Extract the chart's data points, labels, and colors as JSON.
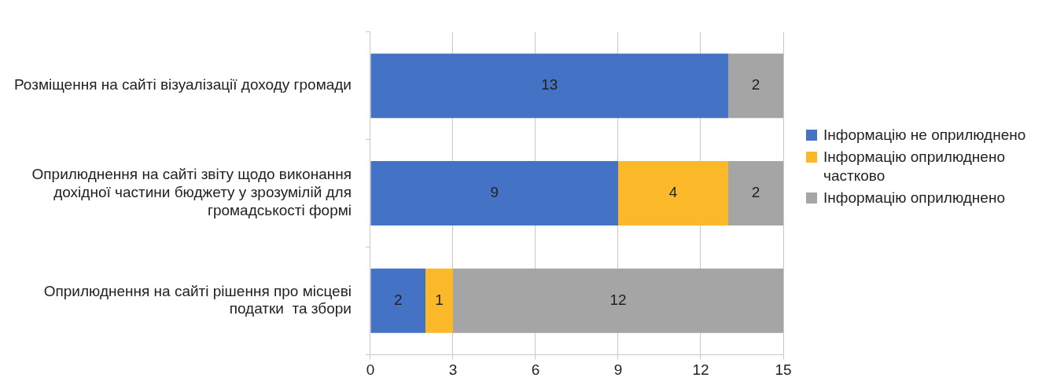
{
  "chart_data": {
    "type": "bar",
    "orientation": "horizontal",
    "stacked": true,
    "categories": [
      "Розміщення на сайті візуалізації доходу громади",
      "Оприлюднення на сайті звіту щодо виконання дохідної частини бюджету у зрозумілій для громадськості формі",
      "Оприлюднення на сайті рішення про місцеві податки  та збори"
    ],
    "series": [
      {
        "name": "Інформацію не оприлюднено",
        "color": "#4472c4",
        "values": [
          13,
          9,
          2
        ]
      },
      {
        "name": "Інформацію оприлюднено частково",
        "color": "#fbb829",
        "values": [
          null,
          4,
          1
        ]
      },
      {
        "name": "Інформацію оприлюднено",
        "color": "#a5a5a5",
        "values": [
          2,
          2,
          12
        ]
      }
    ],
    "xlim": [
      0,
      15
    ],
    "xticks": [
      0,
      3,
      6,
      9,
      12,
      15
    ],
    "grid": "x",
    "legend": "right",
    "data_labels": true
  }
}
